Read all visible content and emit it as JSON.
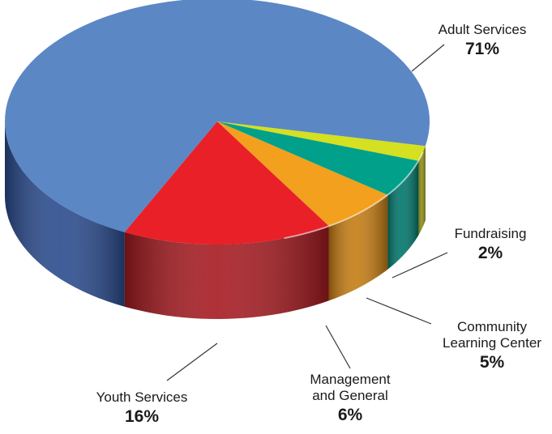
{
  "chart_data": {
    "type": "pie",
    "title": "",
    "slices": [
      {
        "label": "Adult Services",
        "value": 71,
        "display": "71%",
        "color": "#5b87c5",
        "side": "#2a4b8e"
      },
      {
        "label": "Youth Services",
        "value": 16,
        "display": "16%",
        "color": "#e92028",
        "side": "#a51a20"
      },
      {
        "label": "Management and General",
        "value": 6,
        "display": "6%",
        "color": "#f2a01e",
        "side": "#c47c12"
      },
      {
        "label": "Community Learning Center",
        "value": 5,
        "display": "5%",
        "color": "#00a08a",
        "side": "#00756a"
      },
      {
        "label": "Fundraising",
        "value": 2,
        "display": "2%",
        "color": "#d4e020",
        "side": "#8c8c14"
      }
    ]
  },
  "labels": {
    "adult": {
      "line1": "Adult Services",
      "pct": "71%"
    },
    "fundraising": {
      "line1": "Fundraising",
      "pct": "2%"
    },
    "community": {
      "line1": "Community",
      "line2": "Learning Center",
      "pct": "5%"
    },
    "management": {
      "line1": "Management",
      "line2": "and General",
      "pct": "6%"
    },
    "youth": {
      "line1": "Youth Services",
      "pct": "16%"
    }
  }
}
